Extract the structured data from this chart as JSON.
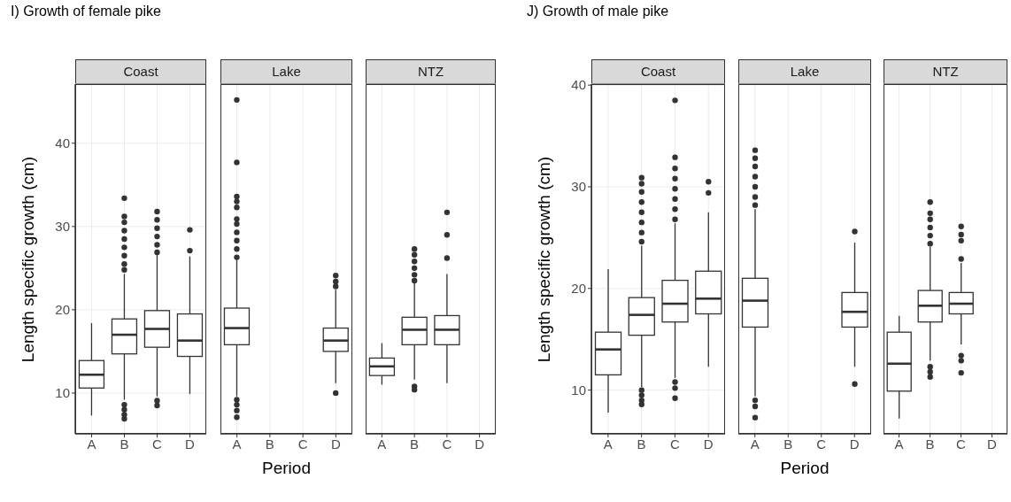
{
  "chart_data": [
    {
      "type": "box",
      "title": "I) Growth of female pike",
      "subtitle": "Coast",
      "ylabel": "Length specific growth (cm)",
      "categories": [
        "A",
        "B",
        "C",
        "D"
      ],
      "ylim": [
        5.1,
        47.1
      ],
      "yticks": [
        10,
        20,
        30,
        40
      ],
      "grid": true,
      "boxes": [
        {
          "low": 7.3,
          "q1": 10.6,
          "median": 12.2,
          "q3": 13.9,
          "high": 18.4
        },
        {
          "low": 9.2,
          "q1": 14.7,
          "median": 17.0,
          "q3": 18.9,
          "high": 24.3,
          "outliers": [
            24.8,
            25.5,
            26.5,
            27.5,
            28.5,
            29.5,
            30.5,
            31.2,
            33.4,
            8.6,
            8.0,
            7.4,
            6.9
          ]
        },
        {
          "low": 9.6,
          "q1": 15.5,
          "median": 17.7,
          "q3": 19.9,
          "high": 26.6,
          "outliers": [
            26.9,
            27.8,
            28.8,
            29.8,
            30.8,
            31.8,
            9.1,
            8.5
          ]
        },
        {
          "low": 9.9,
          "q1": 14.4,
          "median": 16.3,
          "q3": 19.5,
          "high": 26.4,
          "outliers": [
            27.1,
            29.6
          ]
        }
      ]
    },
    {
      "type": "box",
      "subtitle": "Lake",
      "xlabel": "Period",
      "categories": [
        "A",
        "B",
        "C",
        "D"
      ],
      "ylim": [
        5.1,
        47.1
      ],
      "yticks": [
        10,
        20,
        30,
        40
      ],
      "grid": true,
      "tick_labels": "x",
      "boxes": [
        {
          "low": 9.6,
          "q1": 15.8,
          "median": 17.8,
          "q3": 20.2,
          "high": 26.0,
          "outliers": [
            26.3,
            27.3,
            28.3,
            29.3,
            30.3,
            30.9,
            32.3,
            33.0,
            33.6,
            37.7,
            45.2,
            9.2,
            8.6,
            7.9,
            7.1
          ]
        },
        null,
        null,
        {
          "low": 11.2,
          "q1": 15.0,
          "median": 16.3,
          "q3": 17.8,
          "high": 22.4,
          "outliers": [
            22.8,
            23.4,
            24.1,
            10.0
          ]
        }
      ]
    },
    {
      "type": "box",
      "subtitle": "NTZ",
      "categories": [
        "A",
        "B",
        "C",
        "D"
      ],
      "ylim": [
        5.1,
        47.1
      ],
      "yticks": [
        10,
        20,
        30,
        40
      ],
      "grid": true,
      "tick_labels": "x",
      "boxes": [
        {
          "low": 11.0,
          "q1": 12.1,
          "median": 13.2,
          "q3": 14.2,
          "high": 16.0
        },
        {
          "low": 11.6,
          "q1": 15.8,
          "median": 17.6,
          "q3": 19.1,
          "high": 23.2,
          "outliers": [
            23.5,
            24.2,
            25.0,
            25.8,
            26.6,
            27.3,
            10.8,
            10.4
          ]
        },
        {
          "low": 11.2,
          "q1": 15.8,
          "median": 17.6,
          "q3": 19.3,
          "high": 24.3,
          "outliers": [
            26.2,
            29.0,
            31.7
          ]
        },
        null
      ]
    },
    {
      "type": "box",
      "title": "J) Growth of male pike",
      "subtitle": "Coast",
      "ylabel": "Length specific growth (cm)",
      "categories": [
        "A",
        "B",
        "C",
        "D"
      ],
      "ylim": [
        5.7,
        40.1
      ],
      "yticks": [
        10,
        20,
        30,
        40
      ],
      "grid": true,
      "boxes": [
        {
          "low": 7.8,
          "q1": 11.5,
          "median": 14.0,
          "q3": 15.7,
          "high": 21.9
        },
        {
          "low": 10.3,
          "q1": 15.4,
          "median": 17.4,
          "q3": 19.1,
          "high": 24.2,
          "outliers": [
            24.6,
            25.5,
            26.5,
            27.5,
            28.5,
            29.5,
            30.3,
            30.9,
            10.0,
            9.5,
            9.0,
            8.6
          ]
        },
        {
          "low": 11.2,
          "q1": 16.7,
          "median": 18.5,
          "q3": 20.8,
          "high": 26.4,
          "outliers": [
            26.8,
            27.8,
            28.8,
            29.8,
            30.8,
            31.8,
            32.9,
            38.5,
            10.8,
            10.2,
            9.2
          ]
        },
        {
          "low": 12.3,
          "q1": 17.5,
          "median": 19.0,
          "q3": 21.7,
          "high": 27.5,
          "outliers": [
            29.4,
            30.5
          ]
        }
      ]
    },
    {
      "type": "box",
      "subtitle": "Lake",
      "xlabel": "Period",
      "categories": [
        "A",
        "B",
        "C",
        "D"
      ],
      "ylim": [
        5.7,
        40.1
      ],
      "yticks": [
        10,
        20,
        30,
        40
      ],
      "grid": true,
      "tick_labels": "x",
      "boxes": [
        {
          "low": 9.4,
          "q1": 16.2,
          "median": 18.8,
          "q3": 21.0,
          "high": 27.8,
          "outliers": [
            28.2,
            29.0,
            30.0,
            31.0,
            32.0,
            32.8,
            33.6,
            9.0,
            8.4,
            7.3
          ]
        },
        null,
        null,
        {
          "low": 12.3,
          "q1": 16.2,
          "median": 17.7,
          "q3": 19.6,
          "high": 24.5,
          "outliers": [
            25.6,
            10.6
          ]
        }
      ]
    },
    {
      "type": "box",
      "subtitle": "NTZ",
      "categories": [
        "A",
        "B",
        "C",
        "D"
      ],
      "ylim": [
        5.7,
        40.1
      ],
      "yticks": [
        10,
        20,
        30,
        40
      ],
      "grid": true,
      "tick_labels": "x",
      "boxes": [
        {
          "low": 7.2,
          "q1": 9.9,
          "median": 12.6,
          "q3": 15.7,
          "high": 17.3
        },
        {
          "low": 12.9,
          "q1": 16.7,
          "median": 18.3,
          "q3": 19.8,
          "high": 24.1,
          "outliers": [
            24.4,
            25.2,
            26.0,
            26.8,
            27.4,
            28.5,
            12.3,
            11.8,
            11.3
          ]
        },
        {
          "low": 14.5,
          "q1": 17.5,
          "median": 18.5,
          "q3": 19.6,
          "high": 22.5,
          "outliers": [
            22.9,
            24.7,
            25.3,
            26.1,
            13.4,
            12.9,
            11.7
          ]
        },
        null
      ]
    }
  ]
}
